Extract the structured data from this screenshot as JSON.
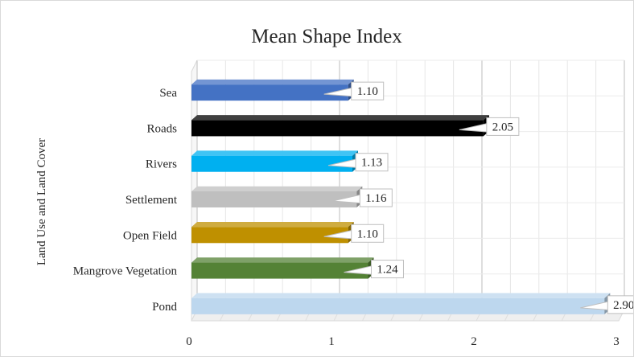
{
  "chart_data": {
    "type": "bar",
    "orientation": "horizontal",
    "title": "Mean Shape Index",
    "xlabel": "",
    "ylabel": "Land Use and Land Cover",
    "categories": [
      "Sea",
      "Roads",
      "Rivers",
      "Settlement",
      "Open Field",
      "Mangrove Vegetation",
      "Pond"
    ],
    "values": [
      1.1,
      2.05,
      1.13,
      1.16,
      1.1,
      1.24,
      2.9
    ],
    "data_labels": [
      "1.10",
      "2.05",
      "1.13",
      "1.16",
      "1.10",
      "1.24",
      "2.90"
    ],
    "colors": [
      "#4472c4",
      "#000000",
      "#00b0f0",
      "#bfbfbf",
      "#bf9000",
      "#548235",
      "#bdd7ee"
    ],
    "xlim": [
      0,
      3
    ],
    "xticks": [
      "0",
      "1",
      "2",
      "3"
    ],
    "grid": true,
    "bar_style": "3d"
  }
}
